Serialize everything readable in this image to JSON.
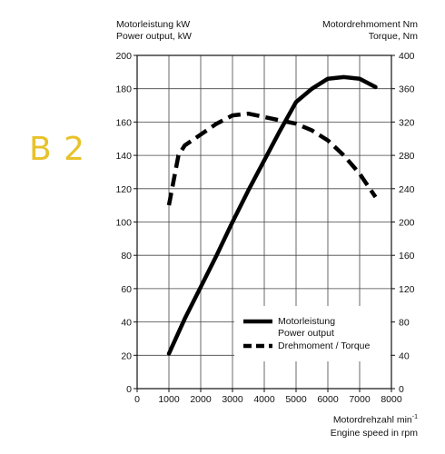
{
  "badge": {
    "text": "B 2",
    "color": "#E8C22A"
  },
  "chart_data": {
    "type": "line",
    "left_axis": {
      "label_de": "Motorleistung kW",
      "label_en": "Power output, kW",
      "range": [
        0,
        200
      ],
      "ticks": [
        "0",
        "20",
        "40",
        "60",
        "80",
        "100",
        "120",
        "140",
        "160",
        "180",
        "200"
      ]
    },
    "right_axis": {
      "label_de": "Motordrehmoment Nm",
      "label_en": "Torque, Nm",
      "range": [
        0,
        400
      ],
      "ticks": [
        "0",
        "40",
        "80",
        "120",
        "160",
        "200",
        "240",
        "280",
        "320",
        "360",
        "400"
      ]
    },
    "x_axis": {
      "label_de": "Motordrehzahl min",
      "label_de_sup": "-1",
      "label_en": "Engine speed in rpm",
      "range": [
        0,
        8000
      ],
      "ticks": [
        "0",
        "1000",
        "2000",
        "3000",
        "4000",
        "5000",
        "6000",
        "7000",
        "8000"
      ]
    },
    "grid": true,
    "legend_position": "bottom-right",
    "series": [
      {
        "name_de": "Motorleistung",
        "name_en": "Power output",
        "axis": "left",
        "style": "solid",
        "x": [
          1000,
          1500,
          2000,
          2500,
          3000,
          3500,
          4000,
          4500,
          5000,
          5500,
          6000,
          6500,
          7000,
          7500
        ],
        "y": [
          21,
          42,
          61,
          80,
          100,
          119,
          137,
          155,
          172,
          180,
          186,
          187,
          186,
          181
        ]
      },
      {
        "name": "Drehmoment / Torque",
        "axis": "right",
        "style": "dashed",
        "x": [
          1000,
          1300,
          1500,
          2000,
          2500,
          3000,
          3500,
          4000,
          4500,
          5000,
          5500,
          6000,
          6500,
          7000,
          7500
        ],
        "y": [
          220,
          280,
          292,
          305,
          318,
          328,
          330,
          326,
          322,
          318,
          310,
          298,
          280,
          258,
          230
        ]
      }
    ]
  }
}
